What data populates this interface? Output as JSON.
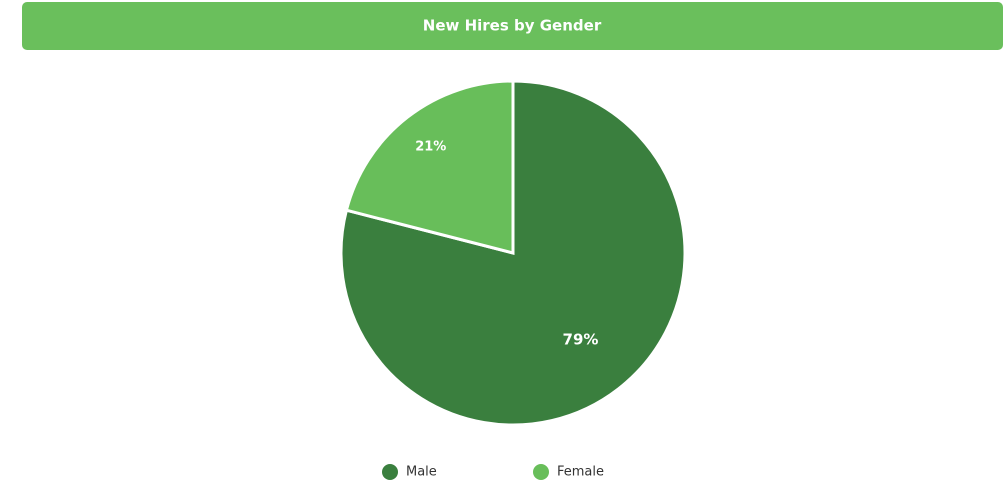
{
  "chart_data": {
    "type": "pie",
    "title": "New Hires by Gender",
    "categories": [
      "Male",
      "Female"
    ],
    "values": [
      79,
      21
    ],
    "value_labels": [
      "79%",
      "21%"
    ],
    "colors": [
      "#3a7f3e",
      "#68be5a"
    ],
    "legend": "bottom"
  }
}
